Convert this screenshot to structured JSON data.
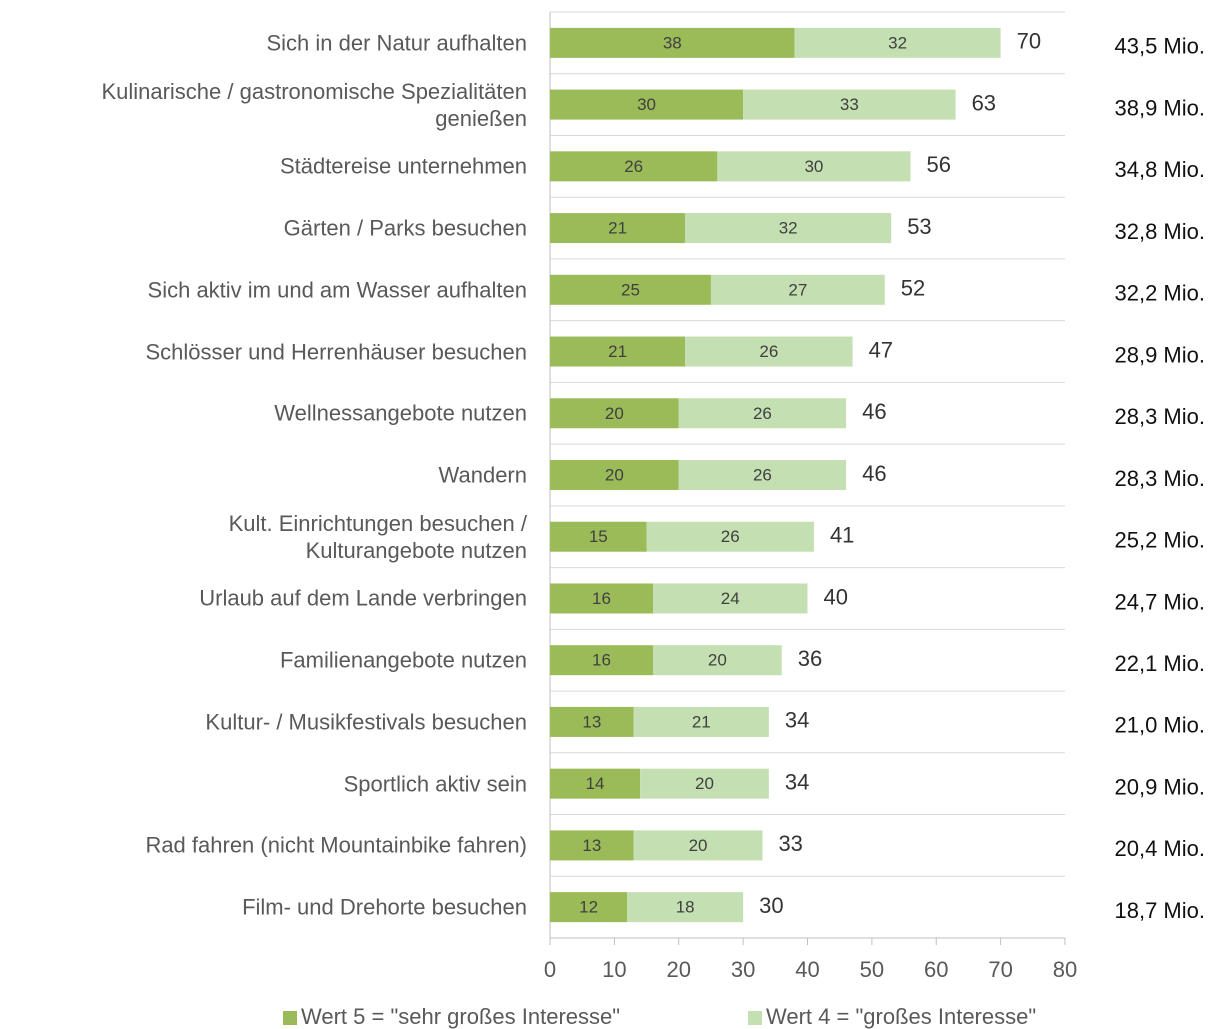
{
  "chart_data": {
    "type": "stacked_bar_horizontal",
    "categories": [
      "Sich in der Natur aufhalten",
      "Kulinarische / gastronomische Spezialitäten\ngenießen",
      "Städtereise unternehmen",
      "Gärten / Parks besuchen",
      "Sich aktiv im und am Wasser aufhalten",
      "Schlösser und Herrenhäuser besuchen",
      "Wellnessangebote nutzen",
      "Wandern",
      "Kult. Einrichtungen besuchen /\nKulturangebote nutzen",
      "Urlaub auf dem Lande verbringen",
      "Familienangebote nutzen",
      "Kultur- / Musikfestivals besuchen",
      "Sportlich aktiv sein",
      "Rad fahren (nicht Mountainbike fahren)",
      "Film- und Drehorte besuchen"
    ],
    "series": [
      {
        "name": "Wert 5 = \"sehr großes Interesse\"",
        "color": "#9bbb59",
        "values": [
          38,
          30,
          26,
          21,
          25,
          21,
          20,
          20,
          15,
          16,
          16,
          13,
          14,
          13,
          12
        ]
      },
      {
        "name": "Wert 4 = \"großes Interesse\"",
        "color": "#c4e0b2",
        "values": [
          32,
          33,
          30,
          32,
          27,
          26,
          26,
          26,
          26,
          24,
          20,
          21,
          20,
          20,
          18
        ]
      }
    ],
    "totals": [
      70,
      63,
      56,
      53,
      52,
      47,
      46,
      46,
      41,
      40,
      36,
      34,
      34,
      33,
      30
    ],
    "population_labels": [
      "43,5 Mio.",
      "38,9 Mio.",
      "34,8 Mio.",
      "32,8 Mio.",
      "32,2 Mio.",
      "28,9 Mio.",
      "28,3 Mio.",
      "28,3 Mio.",
      "25,2 Mio.",
      "24,7 Mio.",
      "22,1 Mio.",
      "21,0 Mio.",
      "20,9 Mio.",
      "20,4 Mio.",
      "18,7 Mio."
    ],
    "xlim": [
      0,
      80
    ],
    "xticks": [
      0,
      10,
      20,
      30,
      40,
      50,
      60,
      70,
      80
    ],
    "legend": "bottom"
  }
}
